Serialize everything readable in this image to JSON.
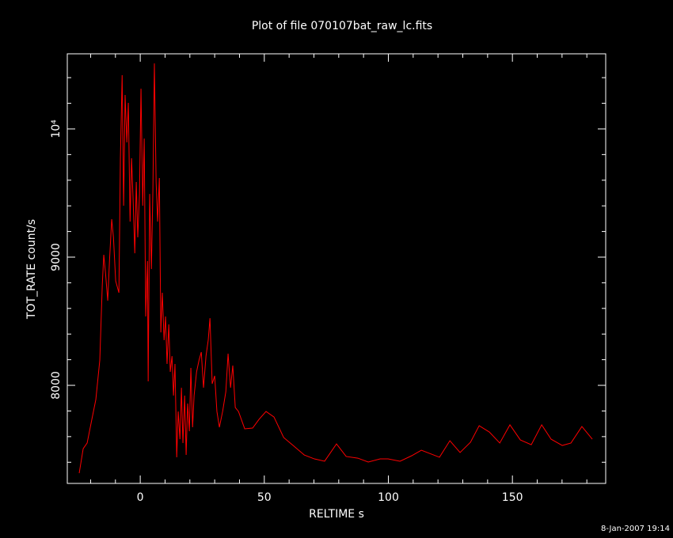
{
  "chart_data": {
    "type": "line",
    "title": "Plot of file 070107bat_raw_lc.fits",
    "x_label": "RELTIME  s",
    "y_label": "TOT_RATE  count/s",
    "timestamp": "8-Jan-2007 19:14",
    "color": "#ff0000",
    "xlim": [
      -29.4,
      187.6
    ],
    "ylim": [
      7235,
      10586
    ],
    "xticks": [
      0,
      50,
      100,
      150
    ],
    "xminorticks": [
      -20,
      -10,
      10,
      20,
      30,
      40,
      60,
      70,
      80,
      90,
      110,
      120,
      130,
      140,
      160,
      170,
      180
    ],
    "yticks": [
      8000,
      9000,
      {
        "value": 10000,
        "label": "10⁴"
      }
    ],
    "yminorticks": [
      7400,
      7600,
      7800,
      8200,
      8400,
      8600,
      8800,
      9200,
      9400,
      9600,
      9800,
      10200,
      10400
    ],
    "x": [
      -24.6,
      -23,
      -21.4,
      -19.5,
      -17.9,
      -16.3,
      -15.3,
      -14.7,
      -14,
      -13.1,
      -12.4,
      -11.5,
      -10.8,
      -9.9,
      -8.6,
      -8,
      -7.3,
      -6.7,
      -6.1,
      -5.4,
      -4.8,
      -4.1,
      -3.5,
      -2.9,
      -2.2,
      -1.6,
      -1,
      -0.3,
      0.3,
      1,
      1.6,
      2.2,
      2.9,
      3.2,
      3.8,
      4.5,
      5.1,
      5.7,
      6.4,
      7,
      7.7,
      8.3,
      8.9,
      9.6,
      10.2,
      10.8,
      11.5,
      12.1,
      12.8,
      13.4,
      14,
      14.7,
      15.3,
      16,
      16.6,
      17.2,
      17.9,
      18.5,
      19.1,
      19.8,
      20.4,
      21.1,
      21.7,
      22.7,
      23.7,
      24.6,
      25.5,
      26.5,
      27.4,
      28.1,
      29,
      30,
      30.9,
      31.9,
      33.2,
      34.5,
      35.4,
      36.4,
      37.3,
      38.3,
      39.6,
      42.1,
      45.3,
      47.9,
      50.7,
      53.9,
      57.8,
      61.6,
      66.1,
      70.2,
      74.3,
      79.1,
      83,
      87.7,
      91.9,
      96.7,
      99.9,
      104.7,
      109.4,
      113.3,
      120.6,
      124.8,
      128.9,
      133.1,
      136.6,
      140.7,
      144.9,
      149,
      153.2,
      157.6,
      161.8,
      165.6,
      170.1,
      173.6,
      178,
      182.2
    ],
    "values": [
      7315,
      7506,
      7550,
      7735,
      7889,
      8197,
      8784,
      9018,
      8876,
      8660,
      8969,
      9296,
      9154,
      8814,
      8722,
      9771,
      10419,
      9401,
      10265,
      9895,
      10203,
      9277,
      9771,
      9462,
      9030,
      9586,
      9154,
      9493,
      10314,
      9401,
      9925,
      8537,
      8969,
      8031,
      9493,
      8907,
      9524,
      10511,
      9586,
      9277,
      9617,
      8413,
      8722,
      8352,
      8537,
      8167,
      8475,
      8105,
      8228,
      7920,
      8167,
      7439,
      7796,
      7580,
      7981,
      7550,
      7920,
      7457,
      7858,
      7642,
      8136,
      7673,
      7920,
      8105,
      8197,
      8259,
      7981,
      8228,
      8352,
      8524,
      8012,
      8074,
      7796,
      7673,
      7796,
      7951,
      8247,
      7981,
      8154,
      7827,
      7796,
      7661,
      7667,
      7735,
      7796,
      7753,
      7593,
      7531,
      7457,
      7426,
      7408,
      7543,
      7445,
      7432,
      7402,
      7426,
      7426,
      7408,
      7451,
      7494,
      7439,
      7568,
      7476,
      7556,
      7685,
      7636,
      7550,
      7692,
      7574,
      7537,
      7692,
      7580,
      7531,
      7550,
      7679,
      7580
    ]
  }
}
